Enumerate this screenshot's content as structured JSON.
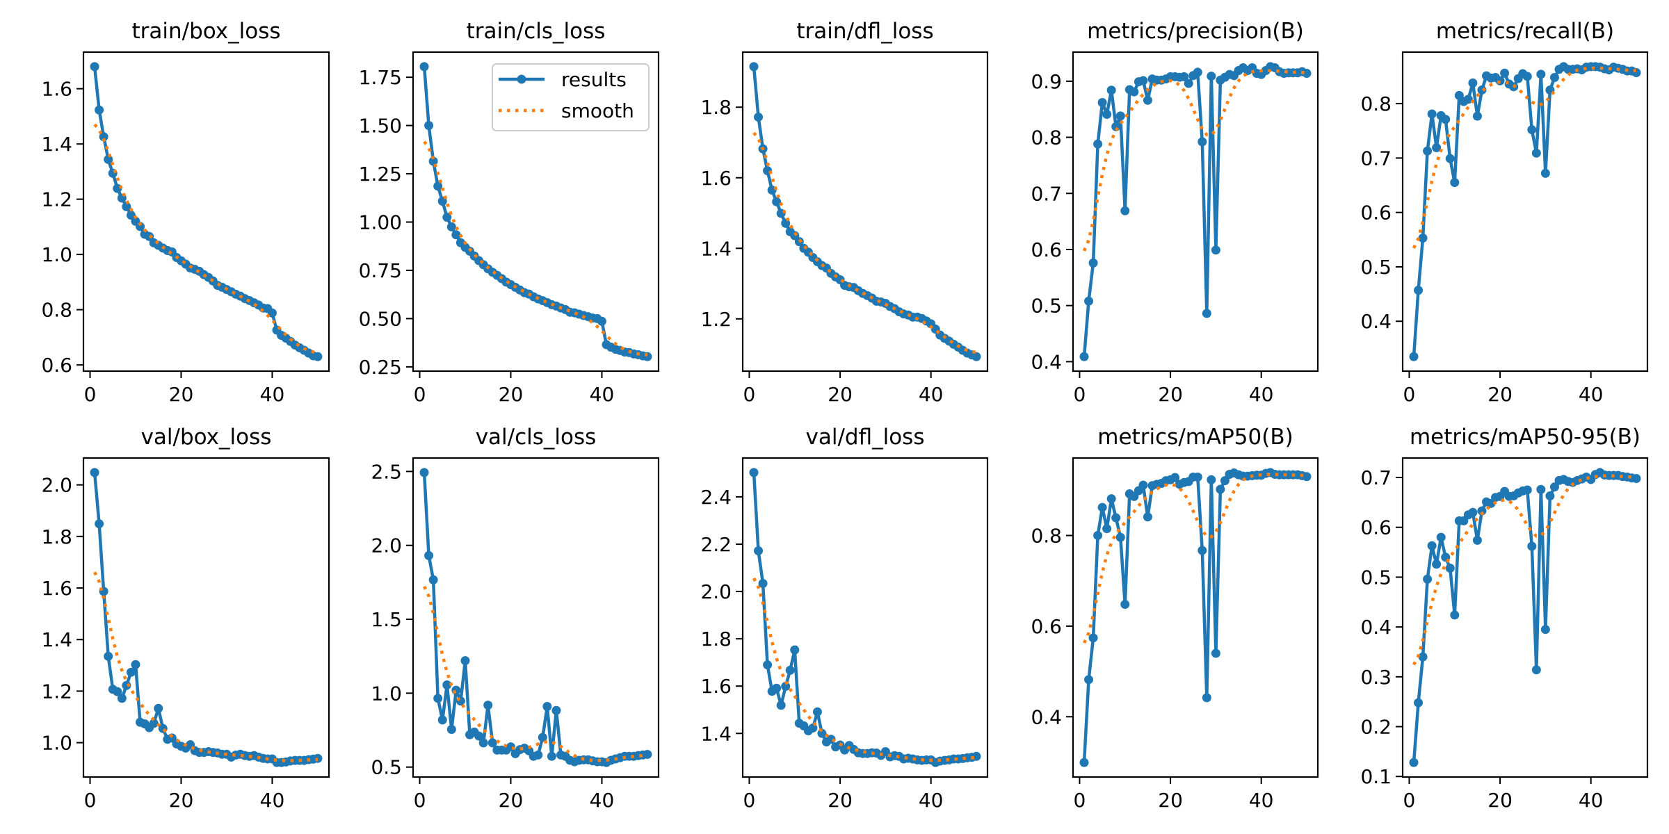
{
  "figure": {
    "legend": {
      "results_label": "results",
      "smooth_label": "smooth",
      "placement": "upper-right of train/cls_loss panel"
    },
    "colors": {
      "results": "#1f77b4",
      "smooth": "#ff7f0e",
      "axes": "#000000",
      "legend_border": "#cccccc"
    }
  },
  "chart_data": [
    {
      "type": "line",
      "title": "train/box_loss",
      "xlabel": "",
      "ylabel": "",
      "x_ticks": [
        0,
        20,
        40
      ],
      "y_ticks": [
        0.6,
        0.8,
        1.0,
        1.2,
        1.4,
        1.6
      ],
      "y_tick_labels": [
        "0.6",
        "0.8",
        "1.0",
        "1.2",
        "1.4",
        "1.6"
      ],
      "grid": false,
      "smooth": {
        "method": "gaussian",
        "sigma": 3
      },
      "series": [
        {
          "name": "results",
          "values": [
            1.68,
            1.523,
            1.426,
            1.344,
            1.294,
            1.239,
            1.204,
            1.173,
            1.142,
            1.12,
            1.101,
            1.073,
            1.065,
            1.042,
            1.033,
            1.023,
            1.014,
            1.009,
            0.989,
            0.977,
            0.965,
            0.951,
            0.946,
            0.939,
            0.927,
            0.917,
            0.904,
            0.888,
            0.881,
            0.873,
            0.865,
            0.856,
            0.849,
            0.84,
            0.833,
            0.825,
            0.817,
            0.806,
            0.804,
            0.788,
            0.726,
            0.707,
            0.697,
            0.685,
            0.672,
            0.662,
            0.653,
            0.643,
            0.633,
            0.63
          ]
        }
      ]
    },
    {
      "type": "line",
      "title": "train/cls_loss",
      "xlabel": "",
      "ylabel": "",
      "x_ticks": [
        0,
        20,
        40
      ],
      "y_ticks": [
        0.25,
        0.5,
        0.75,
        1.0,
        1.25,
        1.5,
        1.75
      ],
      "y_tick_labels": [
        "0.25",
        "0.50",
        "0.75",
        "1.00",
        "1.25",
        "1.50",
        "1.75"
      ],
      "grid": false,
      "legend": true,
      "smooth": {
        "method": "gaussian",
        "sigma": 3
      },
      "series": [
        {
          "name": "results",
          "values": [
            1.805,
            1.5,
            1.315,
            1.186,
            1.108,
            1.025,
            0.975,
            0.934,
            0.893,
            0.869,
            0.849,
            0.824,
            0.8,
            0.779,
            0.758,
            0.74,
            0.724,
            0.707,
            0.689,
            0.676,
            0.662,
            0.648,
            0.634,
            0.627,
            0.613,
            0.602,
            0.593,
            0.583,
            0.572,
            0.565,
            0.555,
            0.547,
            0.533,
            0.53,
            0.523,
            0.516,
            0.51,
            0.503,
            0.5,
            0.486,
            0.365,
            0.352,
            0.341,
            0.335,
            0.327,
            0.324,
            0.317,
            0.313,
            0.307,
            0.303
          ]
        }
      ]
    },
    {
      "type": "line",
      "title": "train/dfl_loss",
      "xlabel": "",
      "ylabel": "",
      "x_ticks": [
        0,
        20,
        40
      ],
      "y_ticks": [
        1.2,
        1.4,
        1.6,
        1.8
      ],
      "y_tick_labels": [
        "1.2",
        "1.4",
        "1.6",
        "1.8"
      ],
      "grid": false,
      "smooth": {
        "method": "gaussian",
        "sigma": 3
      },
      "series": [
        {
          "name": "results",
          "values": [
            1.915,
            1.772,
            1.682,
            1.62,
            1.565,
            1.532,
            1.499,
            1.471,
            1.447,
            1.436,
            1.419,
            1.4,
            1.389,
            1.374,
            1.362,
            1.351,
            1.344,
            1.329,
            1.319,
            1.311,
            1.295,
            1.291,
            1.289,
            1.28,
            1.272,
            1.266,
            1.259,
            1.25,
            1.248,
            1.244,
            1.235,
            1.229,
            1.22,
            1.214,
            1.211,
            1.205,
            1.205,
            1.201,
            1.194,
            1.186,
            1.171,
            1.154,
            1.145,
            1.137,
            1.128,
            1.12,
            1.111,
            1.103,
            1.098,
            1.093
          ]
        }
      ]
    },
    {
      "type": "line",
      "title": "metrics/precision(B)",
      "xlabel": "",
      "ylabel": "",
      "x_ticks": [
        0,
        20,
        40
      ],
      "y_ticks": [
        0.4,
        0.5,
        0.6,
        0.7,
        0.8,
        0.9
      ],
      "y_tick_labels": [
        "0.4",
        "0.5",
        "0.6",
        "0.7",
        "0.8",
        "0.9"
      ],
      "grid": false,
      "smooth": {
        "method": "gaussian",
        "sigma": 3
      },
      "series": [
        {
          "name": "results",
          "values": [
            0.409,
            0.508,
            0.576,
            0.788,
            0.862,
            0.841,
            0.884,
            0.819,
            0.838,
            0.669,
            0.885,
            0.881,
            0.899,
            0.901,
            0.866,
            0.904,
            0.902,
            0.902,
            0.904,
            0.908,
            0.908,
            0.907,
            0.908,
            0.896,
            0.91,
            0.916,
            0.792,
            0.486,
            0.909,
            0.599,
            0.902,
            0.907,
            0.912,
            0.91,
            0.919,
            0.924,
            0.919,
            0.924,
            0.914,
            0.912,
            0.919,
            0.926,
            0.924,
            0.917,
            0.914,
            0.915,
            0.915,
            0.915,
            0.917,
            0.914
          ]
        }
      ]
    },
    {
      "type": "line",
      "title": "metrics/recall(B)",
      "xlabel": "",
      "ylabel": "",
      "x_ticks": [
        0,
        20,
        40
      ],
      "y_ticks": [
        0.4,
        0.5,
        0.6,
        0.7,
        0.8
      ],
      "y_tick_labels": [
        "0.4",
        "0.5",
        "0.6",
        "0.7",
        "0.8"
      ],
      "grid": false,
      "smooth": {
        "method": "gaussian",
        "sigma": 3
      },
      "series": [
        {
          "name": "results",
          "values": [
            0.335,
            0.457,
            0.553,
            0.713,
            0.781,
            0.719,
            0.778,
            0.771,
            0.699,
            0.655,
            0.815,
            0.804,
            0.808,
            0.838,
            0.777,
            0.825,
            0.851,
            0.847,
            0.848,
            0.842,
            0.856,
            0.836,
            0.831,
            0.846,
            0.855,
            0.85,
            0.752,
            0.709,
            0.854,
            0.672,
            0.825,
            0.848,
            0.863,
            0.868,
            0.863,
            0.863,
            0.864,
            0.862,
            0.867,
            0.868,
            0.868,
            0.867,
            0.864,
            0.862,
            0.867,
            0.865,
            0.863,
            0.86,
            0.86,
            0.857
          ]
        }
      ]
    },
    {
      "type": "line",
      "title": "val/box_loss",
      "xlabel": "",
      "ylabel": "",
      "x_ticks": [
        0,
        20,
        40
      ],
      "y_ticks": [
        1.0,
        1.2,
        1.4,
        1.6,
        1.8,
        2.0
      ],
      "y_tick_labels": [
        "1.0",
        "1.2",
        "1.4",
        "1.6",
        "1.8",
        "2.0"
      ],
      "grid": false,
      "smooth": {
        "method": "gaussian",
        "sigma": 3
      },
      "series": [
        {
          "name": "results",
          "values": [
            2.048,
            1.849,
            1.587,
            1.335,
            1.207,
            1.198,
            1.172,
            1.222,
            1.273,
            1.303,
            1.079,
            1.073,
            1.058,
            1.075,
            1.133,
            1.055,
            1.013,
            1.018,
            0.995,
            0.986,
            0.979,
            0.992,
            0.969,
            0.962,
            0.962,
            0.965,
            0.962,
            0.96,
            0.955,
            0.955,
            0.944,
            0.952,
            0.955,
            0.95,
            0.947,
            0.95,
            0.944,
            0.939,
            0.937,
            0.937,
            0.923,
            0.923,
            0.925,
            0.929,
            0.931,
            0.931,
            0.931,
            0.934,
            0.936,
            0.939
          ]
        }
      ]
    },
    {
      "type": "line",
      "title": "val/cls_loss",
      "xlabel": "",
      "ylabel": "",
      "x_ticks": [
        0,
        20,
        40
      ],
      "y_ticks": [
        0.5,
        1.0,
        1.5,
        2.0,
        2.5
      ],
      "y_tick_labels": [
        "0.5",
        "1.0",
        "1.5",
        "2.0",
        "2.5"
      ],
      "grid": false,
      "smooth": {
        "method": "gaussian",
        "sigma": 3
      },
      "series": [
        {
          "name": "results",
          "values": [
            2.493,
            1.931,
            1.767,
            0.965,
            0.819,
            1.056,
            0.755,
            1.02,
            0.947,
            1.22,
            0.719,
            0.737,
            0.71,
            0.664,
            0.919,
            0.664,
            0.615,
            0.615,
            0.615,
            0.637,
            0.591,
            0.618,
            0.628,
            0.61,
            0.573,
            0.582,
            0.701,
            0.91,
            0.573,
            0.883,
            0.582,
            0.573,
            0.546,
            0.536,
            0.546,
            0.549,
            0.549,
            0.542,
            0.536,
            0.536,
            0.531,
            0.546,
            0.555,
            0.564,
            0.573,
            0.573,
            0.573,
            0.578,
            0.582,
            0.586
          ]
        }
      ]
    },
    {
      "type": "line",
      "title": "val/dfl_loss",
      "xlabel": "",
      "ylabel": "",
      "x_ticks": [
        0,
        20,
        40
      ],
      "y_ticks": [
        1.4,
        1.6,
        1.8,
        2.0,
        2.2,
        2.4
      ],
      "y_tick_labels": [
        "1.4",
        "1.6",
        "1.8",
        "2.0",
        "2.2",
        "2.4"
      ],
      "grid": false,
      "smooth": {
        "method": "gaussian",
        "sigma": 3
      },
      "series": [
        {
          "name": "results",
          "values": [
            2.503,
            2.172,
            2.034,
            1.69,
            1.578,
            1.591,
            1.519,
            1.599,
            1.667,
            1.753,
            1.443,
            1.432,
            1.411,
            1.423,
            1.491,
            1.4,
            1.364,
            1.375,
            1.343,
            1.351,
            1.33,
            1.349,
            1.332,
            1.318,
            1.315,
            1.315,
            1.318,
            1.317,
            1.307,
            1.323,
            1.301,
            1.306,
            1.303,
            1.292,
            1.295,
            1.292,
            1.288,
            1.286,
            1.288,
            1.288,
            1.277,
            1.283,
            1.286,
            1.288,
            1.292,
            1.292,
            1.294,
            1.297,
            1.299,
            1.303
          ]
        }
      ]
    },
    {
      "type": "line",
      "title": "metrics/mAP50(B)",
      "xlabel": "",
      "ylabel": "",
      "x_ticks": [
        0,
        20,
        40
      ],
      "y_ticks": [
        0.4,
        0.6,
        0.8
      ],
      "y_tick_labels": [
        "0.4",
        "0.6",
        "0.8"
      ],
      "grid": false,
      "smooth": {
        "method": "gaussian",
        "sigma": 3
      },
      "series": [
        {
          "name": "results",
          "values": [
            0.299,
            0.482,
            0.574,
            0.8,
            0.862,
            0.815,
            0.881,
            0.839,
            0.796,
            0.648,
            0.892,
            0.886,
            0.899,
            0.911,
            0.841,
            0.91,
            0.913,
            0.915,
            0.921,
            0.923,
            0.928,
            0.913,
            0.917,
            0.919,
            0.929,
            0.929,
            0.767,
            0.442,
            0.923,
            0.54,
            0.902,
            0.921,
            0.935,
            0.938,
            0.934,
            0.931,
            0.931,
            0.932,
            0.933,
            0.933,
            0.937,
            0.939,
            0.935,
            0.934,
            0.934,
            0.934,
            0.934,
            0.934,
            0.932,
            0.93
          ]
        }
      ]
    },
    {
      "type": "line",
      "title": "metrics/mAP50-95(B)",
      "xlabel": "",
      "ylabel": "",
      "x_ticks": [
        0,
        20,
        40
      ],
      "y_ticks": [
        0.1,
        0.2,
        0.3,
        0.4,
        0.5,
        0.6,
        0.7
      ],
      "y_tick_labels": [
        "0.1",
        "0.2",
        "0.3",
        "0.4",
        "0.5",
        "0.6",
        "0.7"
      ],
      "grid": false,
      "smooth": {
        "method": "gaussian",
        "sigma": 3
      },
      "series": [
        {
          "name": "results",
          "values": [
            0.128,
            0.248,
            0.34,
            0.496,
            0.563,
            0.526,
            0.58,
            0.54,
            0.518,
            0.424,
            0.613,
            0.613,
            0.625,
            0.63,
            0.574,
            0.633,
            0.651,
            0.648,
            0.66,
            0.662,
            0.672,
            0.662,
            0.663,
            0.669,
            0.673,
            0.675,
            0.562,
            0.314,
            0.676,
            0.395,
            0.663,
            0.681,
            0.694,
            0.696,
            0.692,
            0.69,
            0.694,
            0.697,
            0.701,
            0.696,
            0.706,
            0.71,
            0.705,
            0.704,
            0.704,
            0.704,
            0.702,
            0.701,
            0.699,
            0.698
          ]
        }
      ]
    }
  ]
}
